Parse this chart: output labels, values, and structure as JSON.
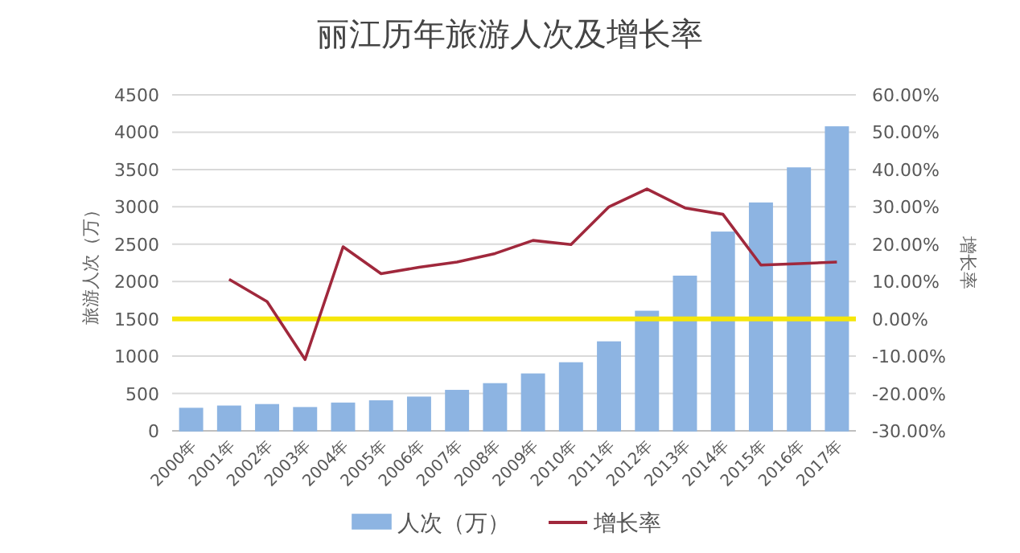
{
  "chart_data": {
    "type": "bar",
    "title": "丽江历年旅游人次及增长率",
    "ylabel": "旅游人次（万）",
    "y2label": "增长率",
    "categories": [
      "2000年",
      "2001年",
      "2002年",
      "2003年",
      "2004年",
      "2005年",
      "2006年",
      "2007年",
      "2008年",
      "2009年",
      "2010年",
      "2011年",
      "2012年",
      "2013年",
      "2014年",
      "2015年",
      "2016年",
      "2017年"
    ],
    "series": [
      {
        "name": "人次（万）",
        "color": "#8db4e2",
        "values": [
          300,
          330,
          350,
          310,
          370,
          400,
          450,
          540,
          630,
          760,
          910,
          1190,
          1600,
          2070,
          2660,
          3050,
          3520,
          4070
        ]
      },
      {
        "name": "增长率",
        "type": "line",
        "axis": "y2",
        "color": "#a0283c",
        "values": [
          null,
          10.6,
          4.6,
          -10.9,
          19.3,
          12.1,
          13.8,
          15.2,
          17.5,
          21.0,
          19.9,
          30.0,
          34.8,
          29.7,
          28.0,
          14.4,
          14.8,
          15.2
        ]
      }
    ],
    "ylim": [
      0,
      4500
    ],
    "yticks": [
      0,
      500,
      1000,
      1500,
      2000,
      2500,
      3000,
      3500,
      4000,
      4500
    ],
    "y2lim": [
      -30,
      60
    ],
    "y2ticks": [
      {
        "value": -30,
        "label": "-30.00%"
      },
      {
        "value": -20,
        "label": "-20.00%"
      },
      {
        "value": -10,
        "label": "-10.00%"
      },
      {
        "value": 0,
        "label": "0.00%"
      },
      {
        "value": 10,
        "label": "10.00%"
      },
      {
        "value": 20,
        "label": "20.00%"
      },
      {
        "value": 30,
        "label": "30.00%"
      },
      {
        "value": 40,
        "label": "40.00%"
      },
      {
        "value": 50,
        "label": "50.00%"
      },
      {
        "value": 60,
        "label": "60.00%"
      }
    ],
    "ref_lines": [
      {
        "axis": "y2",
        "value": 0,
        "color": "#f5e60a"
      }
    ],
    "grid": "y",
    "legend": "bottom",
    "marker": "none",
    "line_style": "solid"
  }
}
